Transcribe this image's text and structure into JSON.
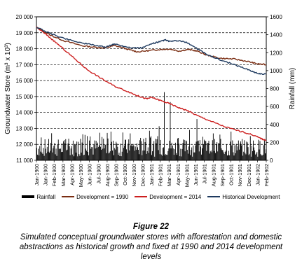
{
  "chart_data": {
    "type": "line",
    "ylabel": "Groundwater Store (m³ x 10³)",
    "y2label": "Rainfall (mm)",
    "ylim": [
      11000,
      20000
    ],
    "y2lim": [
      0,
      1600
    ],
    "yticks": [
      "11 000",
      "12 000",
      "13 000",
      "14 000",
      "15 000",
      "16 000",
      "17 000",
      "18 000",
      "19 000",
      "20 000"
    ],
    "y2ticks": [
      "0",
      "200",
      "400",
      "600",
      "800",
      "1000",
      "1200",
      "1400",
      "1600"
    ],
    "x_tick_labels": [
      "Jan-1900",
      "Jan-1900",
      "Feb-1900",
      "Mar-1900",
      "Apr-1900",
      "May-1900",
      "Jun-1900",
      "Jul-1900",
      "Aug-1900",
      "Sep-1900",
      "Oct-1900",
      "Nov-1900",
      "Dec-1900",
      "Jan-1901",
      "Feb-1901",
      "Mar-1901",
      "Apr-1901",
      "May-1901",
      "Jun-1901",
      "Jul-1901",
      "Aug-1901",
      "Sep-1901",
      "Oct-1901",
      "Nov-1901",
      "Dec-1901",
      "Jan-1902",
      "Feb-1902"
    ],
    "grid": "horizontal dashed at 12 000 - 19 000",
    "legend_position": "bottom",
    "series": [
      {
        "name": "Rainfall",
        "type": "bar",
        "axis": "right",
        "color": "#000000",
        "values_summary": "dense monthly bars, mostly 80-300 mm, peaks near 760, 650, 450, 460, 450"
      },
      {
        "name": "Development = 1990",
        "type": "line",
        "axis": "left",
        "color": "#7a2d12",
        "points": [
          [
            0,
            19350
          ],
          [
            6,
            18850
          ],
          [
            12,
            18500
          ],
          [
            20,
            18180
          ],
          [
            26,
            18080
          ],
          [
            30,
            18050
          ],
          [
            34,
            18200
          ],
          [
            40,
            17950
          ],
          [
            44,
            17800
          ],
          [
            50,
            17900
          ],
          [
            54,
            17950
          ],
          [
            58,
            17980
          ],
          [
            62,
            17850
          ],
          [
            66,
            17950
          ],
          [
            70,
            17850
          ],
          [
            74,
            17600
          ],
          [
            80,
            17400
          ],
          [
            86,
            17350
          ],
          [
            92,
            17200
          ],
          [
            96,
            17050
          ],
          [
            100,
            17000
          ]
        ]
      },
      {
        "name": "Development = 2014",
        "type": "line",
        "axis": "left",
        "color": "#cc1f1f",
        "points": [
          [
            0,
            19350
          ],
          [
            5,
            18800
          ],
          [
            10,
            18200
          ],
          [
            16,
            17450
          ],
          [
            22,
            16700
          ],
          [
            28,
            16150
          ],
          [
            34,
            15650
          ],
          [
            40,
            15300
          ],
          [
            44,
            15050
          ],
          [
            48,
            14850
          ],
          [
            50,
            14950
          ],
          [
            54,
            14750
          ],
          [
            58,
            14550
          ],
          [
            62,
            14300
          ],
          [
            66,
            14100
          ],
          [
            70,
            13800
          ],
          [
            76,
            13450
          ],
          [
            82,
            13100
          ],
          [
            88,
            12850
          ],
          [
            94,
            12600
          ],
          [
            98,
            12350
          ],
          [
            100,
            12250
          ]
        ]
      },
      {
        "name": "Historical Development",
        "type": "line",
        "axis": "left",
        "color": "#1e3a5f",
        "points": [
          [
            0,
            19350
          ],
          [
            6,
            18950
          ],
          [
            12,
            18650
          ],
          [
            20,
            18350
          ],
          [
            26,
            18200
          ],
          [
            30,
            18100
          ],
          [
            34,
            18300
          ],
          [
            38,
            18150
          ],
          [
            42,
            18050
          ],
          [
            46,
            18050
          ],
          [
            50,
            18300
          ],
          [
            54,
            18450
          ],
          [
            56,
            18550
          ],
          [
            58,
            18450
          ],
          [
            62,
            18500
          ],
          [
            66,
            18350
          ],
          [
            70,
            18000
          ],
          [
            74,
            17650
          ],
          [
            80,
            17300
          ],
          [
            86,
            17000
          ],
          [
            92,
            16700
          ],
          [
            96,
            16450
          ],
          [
            100,
            16400
          ]
        ]
      }
    ]
  },
  "caption": {
    "label": "Figure 22",
    "text": "Simulated conceptual groundwater stores with afforestation and domestic abstractions as historical growth and fixed at 1990 and 2014 development levels"
  }
}
